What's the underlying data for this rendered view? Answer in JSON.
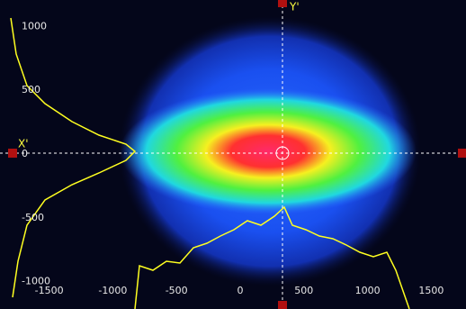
{
  "crosshair": {
    "x_label": "X'",
    "y_label": "Y'"
  },
  "x_axis": {
    "ticks": [
      -1500,
      -1000,
      -500,
      0,
      500,
      1000,
      1500
    ]
  },
  "y_axis": {
    "ticks": [
      1000,
      500,
      0,
      -500,
      -1000
    ]
  }
}
